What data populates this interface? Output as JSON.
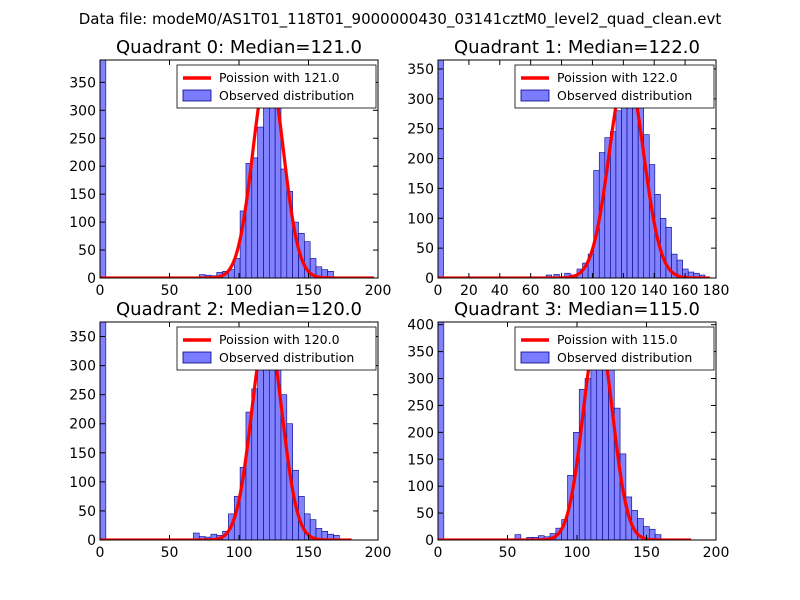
{
  "figure": {
    "suptitle": "Data file: modeM0/AS1T01_118T01_9000000430_03141cztM0_level2_quad_clean.evt"
  },
  "colors": {
    "bars": "#7b7bff",
    "bar_edge": "#000088",
    "poisson_line": "#ff0000",
    "background": "#ffffff"
  },
  "chart_data": [
    {
      "type": "bar",
      "title": "Quadrant 0: Median=121.0",
      "xlabel": "",
      "ylabel": "",
      "xlim": [
        0,
        200
      ],
      "ylim": [
        0,
        390
      ],
      "xticks": [
        "0",
        "50",
        "100",
        "150",
        "200"
      ],
      "yticks": [
        "0",
        "50",
        "100",
        "150",
        "200",
        "250",
        "300",
        "350"
      ],
      "xtick_values": [
        0,
        50,
        100,
        150,
        200
      ],
      "ytick_values": [
        0,
        50,
        100,
        150,
        200,
        250,
        300,
        350
      ],
      "bin_width": 4.2,
      "bins": [
        {
          "x": 0,
          "count": 390
        },
        {
          "x": 71.4,
          "count": 6
        },
        {
          "x": 75.6,
          "count": 5
        },
        {
          "x": 79.8,
          "count": 4
        },
        {
          "x": 84,
          "count": 10
        },
        {
          "x": 88.2,
          "count": 12
        },
        {
          "x": 92.4,
          "count": 15
        },
        {
          "x": 96.6,
          "count": 35
        },
        {
          "x": 100.8,
          "count": 120
        },
        {
          "x": 105,
          "count": 205
        },
        {
          "x": 109.2,
          "count": 215
        },
        {
          "x": 113.4,
          "count": 270
        },
        {
          "x": 117.6,
          "count": 340
        },
        {
          "x": 121.8,
          "count": 330
        },
        {
          "x": 126,
          "count": 305
        },
        {
          "x": 130.2,
          "count": 195
        },
        {
          "x": 134.4,
          "count": 155
        },
        {
          "x": 138.6,
          "count": 100
        },
        {
          "x": 142.8,
          "count": 80
        },
        {
          "x": 147,
          "count": 65
        },
        {
          "x": 151.2,
          "count": 35
        },
        {
          "x": 155.4,
          "count": 20
        },
        {
          "x": 159.6,
          "count": 15
        },
        {
          "x": 163.8,
          "count": 12
        }
      ],
      "poisson": {
        "label": "Poission with 121.0",
        "mean": 121.0,
        "peak": 375,
        "x_range": [
          0,
          197
        ]
      },
      "legend": {
        "line": "Poission with 121.0",
        "bars": "Observed distribution",
        "location": "upper right"
      }
    },
    {
      "type": "bar",
      "title": "Quadrant 1: Median=122.0",
      "xlabel": "",
      "ylabel": "",
      "xlim": [
        0,
        180
      ],
      "ylim": [
        0,
        365
      ],
      "xticks": [
        "0",
        "20",
        "40",
        "60",
        "80",
        "100",
        "120",
        "140",
        "160",
        "180"
      ],
      "yticks": [
        "0",
        "50",
        "100",
        "150",
        "200",
        "250",
        "300",
        "350"
      ],
      "xtick_values": [
        0,
        20,
        40,
        60,
        80,
        100,
        120,
        140,
        160,
        180
      ],
      "ytick_values": [
        0,
        50,
        100,
        150,
        200,
        250,
        300,
        350
      ],
      "bin_width": 3.6,
      "bins": [
        {
          "x": 0,
          "count": 365
        },
        {
          "x": 70,
          "count": 5
        },
        {
          "x": 75,
          "count": 6
        },
        {
          "x": 82,
          "count": 8
        },
        {
          "x": 86,
          "count": 5
        },
        {
          "x": 90,
          "count": 15
        },
        {
          "x": 93.6,
          "count": 25
        },
        {
          "x": 97.2,
          "count": 40
        },
        {
          "x": 100.8,
          "count": 180
        },
        {
          "x": 104.4,
          "count": 210
        },
        {
          "x": 108,
          "count": 235
        },
        {
          "x": 111.6,
          "count": 245
        },
        {
          "x": 115.2,
          "count": 280
        },
        {
          "x": 118.8,
          "count": 310
        },
        {
          "x": 122.4,
          "count": 300
        },
        {
          "x": 126,
          "count": 345
        },
        {
          "x": 129.6,
          "count": 305
        },
        {
          "x": 133.2,
          "count": 240
        },
        {
          "x": 136.8,
          "count": 190
        },
        {
          "x": 140.4,
          "count": 140
        },
        {
          "x": 144,
          "count": 100
        },
        {
          "x": 147.6,
          "count": 85
        },
        {
          "x": 151.2,
          "count": 40
        },
        {
          "x": 154.8,
          "count": 30
        },
        {
          "x": 158.4,
          "count": 15
        },
        {
          "x": 162,
          "count": 10
        },
        {
          "x": 165.6,
          "count": 8
        },
        {
          "x": 169.2,
          "count": 5
        }
      ],
      "poisson": {
        "label": "Poission with 122.0",
        "mean": 122.0,
        "peak": 348,
        "x_range": [
          0,
          176
        ]
      },
      "legend": {
        "line": "Poission with 122.0",
        "bars": "Observed distribution",
        "location": "upper right"
      }
    },
    {
      "type": "bar",
      "title": "Quadrant 2: Median=120.0",
      "xlabel": "",
      "ylabel": "",
      "xlim": [
        0,
        200
      ],
      "ylim": [
        0,
        375
      ],
      "xticks": [
        "0",
        "50",
        "100",
        "150",
        "200"
      ],
      "yticks": [
        "0",
        "50",
        "100",
        "150",
        "200",
        "250",
        "300",
        "350"
      ],
      "xtick_values": [
        0,
        50,
        100,
        150,
        200
      ],
      "ytick_values": [
        0,
        50,
        100,
        150,
        200,
        250,
        300,
        350
      ],
      "bin_width": 4.2,
      "bins": [
        {
          "x": 0,
          "count": 375
        },
        {
          "x": 67.2,
          "count": 12
        },
        {
          "x": 71.4,
          "count": 6
        },
        {
          "x": 75.6,
          "count": 5
        },
        {
          "x": 79.8,
          "count": 10
        },
        {
          "x": 84,
          "count": 8
        },
        {
          "x": 88.2,
          "count": 15
        },
        {
          "x": 92.4,
          "count": 45
        },
        {
          "x": 96.6,
          "count": 75
        },
        {
          "x": 100.8,
          "count": 125
        },
        {
          "x": 105,
          "count": 220
        },
        {
          "x": 109.2,
          "count": 260
        },
        {
          "x": 113.4,
          "count": 300
        },
        {
          "x": 117.6,
          "count": 320
        },
        {
          "x": 121.8,
          "count": 340
        },
        {
          "x": 126,
          "count": 295
        },
        {
          "x": 130.2,
          "count": 250
        },
        {
          "x": 134.4,
          "count": 200
        },
        {
          "x": 138.6,
          "count": 120
        },
        {
          "x": 142.8,
          "count": 75
        },
        {
          "x": 147,
          "count": 45
        },
        {
          "x": 151.2,
          "count": 35
        },
        {
          "x": 155.4,
          "count": 20
        },
        {
          "x": 159.6,
          "count": 15
        },
        {
          "x": 163.8,
          "count": 10
        },
        {
          "x": 168,
          "count": 8
        }
      ],
      "poisson": {
        "label": "Poission with 120.0",
        "mean": 120.0,
        "peak": 362,
        "x_range": [
          0,
          181
        ]
      },
      "legend": {
        "line": "Poission with 120.0",
        "bars": "Observed distribution",
        "location": "upper right"
      }
    },
    {
      "type": "bar",
      "title": "Quadrant 3: Median=115.0",
      "xlabel": "",
      "ylabel": "",
      "xlim": [
        0,
        200
      ],
      "ylim": [
        0,
        405
      ],
      "xticks": [
        "0",
        "50",
        "100",
        "150",
        "200"
      ],
      "yticks": [
        "0",
        "50",
        "100",
        "150",
        "200",
        "250",
        "300",
        "350",
        "400"
      ],
      "xtick_values": [
        0,
        50,
        100,
        150,
        200
      ],
      "ytick_values": [
        0,
        50,
        100,
        150,
        200,
        250,
        300,
        350,
        400
      ],
      "bin_width": 4.2,
      "bins": [
        {
          "x": 0,
          "count": 405
        },
        {
          "x": 55.4,
          "count": 10
        },
        {
          "x": 63.8,
          "count": 5
        },
        {
          "x": 68,
          "count": 5
        },
        {
          "x": 72.2,
          "count": 8
        },
        {
          "x": 76.4,
          "count": 6
        },
        {
          "x": 80.6,
          "count": 12
        },
        {
          "x": 84.8,
          "count": 22
        },
        {
          "x": 89,
          "count": 38
        },
        {
          "x": 93.2,
          "count": 120
        },
        {
          "x": 97.4,
          "count": 200
        },
        {
          "x": 101.6,
          "count": 280
        },
        {
          "x": 105.8,
          "count": 300
        },
        {
          "x": 110,
          "count": 355
        },
        {
          "x": 114.2,
          "count": 340
        },
        {
          "x": 118.4,
          "count": 345
        },
        {
          "x": 122.6,
          "count": 320
        },
        {
          "x": 126.8,
          "count": 245
        },
        {
          "x": 131,
          "count": 160
        },
        {
          "x": 135.2,
          "count": 80
        },
        {
          "x": 139.4,
          "count": 55
        },
        {
          "x": 143.6,
          "count": 40
        },
        {
          "x": 147.8,
          "count": 25
        },
        {
          "x": 152,
          "count": 20
        },
        {
          "x": 156.2,
          "count": 10
        }
      ],
      "poisson": {
        "label": "Poission with 115.0",
        "mean": 115.0,
        "peak": 385,
        "x_range": [
          0,
          182
        ]
      },
      "legend": {
        "line": "Poission with 115.0",
        "bars": "Observed distribution",
        "location": "upper right"
      }
    }
  ]
}
